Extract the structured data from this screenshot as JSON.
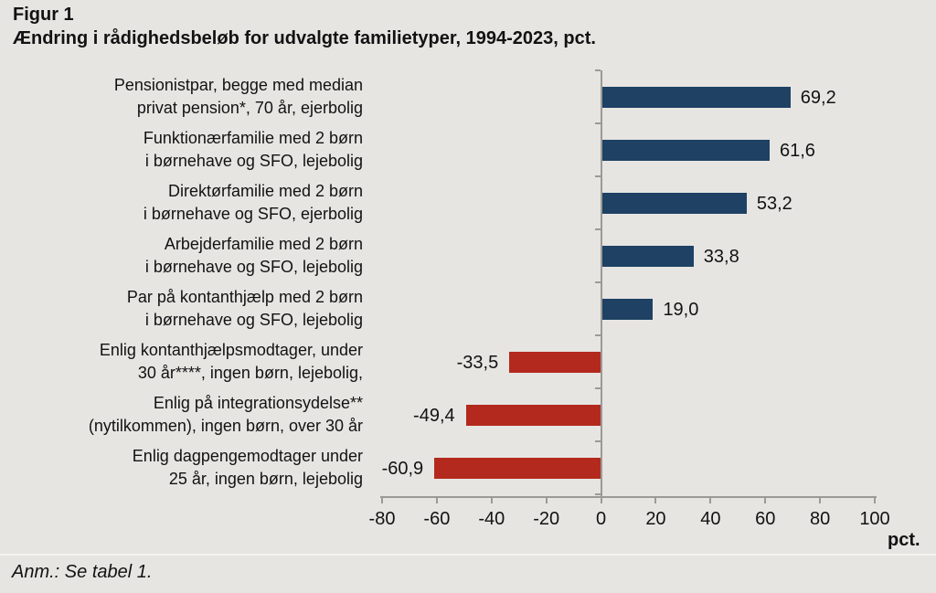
{
  "header": {
    "figure_label": "Figur 1",
    "title": "Ændring i rådighedsbeløb for udvalgte familietyper, 1994-2023, pct."
  },
  "footer": {
    "note": "Anm.: Se tabel 1."
  },
  "chart_data": {
    "type": "bar",
    "orientation": "horizontal",
    "title": "Ændring i rådighedsbeløb for udvalgte familietyper, 1994-2023, pct.",
    "categories": [
      [
        "Pensionistpar, begge med median",
        "privat pension*, 70 år, ejerbolig"
      ],
      [
        "Funktionærfamilie med 2 børn",
        "i børnehave og SFO, lejebolig"
      ],
      [
        "Direktørfamilie med 2 børn",
        "i børnehave og SFO, ejerbolig"
      ],
      [
        "Arbejderfamilie med 2 børn",
        "i børnehave og SFO, lejebolig"
      ],
      [
        "Par på kontanthjælp med 2 børn",
        "i børnehave og SFO, lejebolig"
      ],
      [
        "Enlig kontanthjælpsmodtager, under",
        "30 år****, ingen børn, lejebolig,"
      ],
      [
        "Enlig på integrationsydelse**",
        "(nytilkommen), ingen børn, over 30 år"
      ],
      [
        "Enlig dagpengemodtager under",
        "25 år, ingen børn, lejebolig"
      ]
    ],
    "values": [
      69.2,
      61.6,
      53.2,
      33.8,
      19.0,
      -33.5,
      -49.4,
      -60.9
    ],
    "value_labels": [
      "69,2",
      "61,6",
      "53,2",
      "33,8",
      "19,0",
      "-33,5",
      "-49,4",
      "-60,9"
    ],
    "x_ticks": [
      -80,
      -60,
      -40,
      -20,
      0,
      20,
      40,
      60,
      80,
      100
    ],
    "x_tick_labels": [
      "-80",
      "-60",
      "-40",
      "-20",
      "0",
      "20",
      "40",
      "60",
      "80",
      "100"
    ],
    "xlim": [
      -80,
      100
    ],
    "x_unit": "pct.",
    "grid": "off",
    "legend": "none",
    "colors": {
      "positive_bar": "#1E4164",
      "negative_bar": "#B3291D",
      "axis": "#9C9A97",
      "background": "#E7E5E2"
    }
  }
}
